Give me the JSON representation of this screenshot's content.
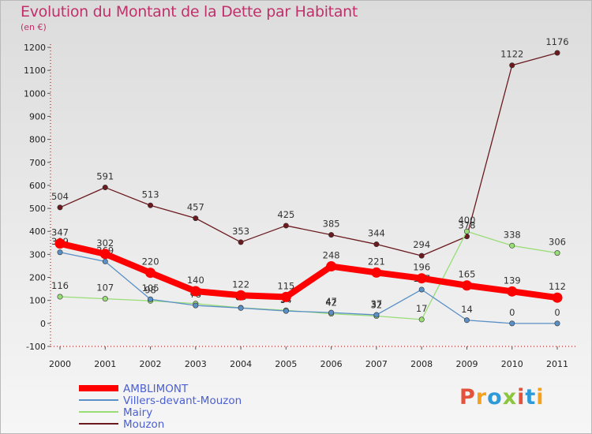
{
  "header": {
    "title": "Evolution du Montant de la Dette par Habitant",
    "unit": "(en €)"
  },
  "logo": {
    "text": "Proxiti",
    "colors": [
      "#e5523b",
      "#f3a21f",
      "#2f9ad8",
      "#8cc63f",
      "#e5523b",
      "#2f9ad8",
      "#f3a21f"
    ]
  },
  "chart_data": {
    "type": "line",
    "title": "Evolution du Montant de la Dette par Habitant",
    "ylabel": "(en €)",
    "xlabel": "",
    "x": [
      "2000",
      "2001",
      "2002",
      "2003",
      "2004",
      "2005",
      "2006",
      "2007",
      "2008",
      "2009",
      "2010",
      "2011"
    ],
    "ylim": [
      -100,
      1200
    ],
    "yticks": [
      -100,
      0,
      100,
      200,
      300,
      400,
      500,
      600,
      700,
      800,
      900,
      1000,
      1100,
      1200
    ],
    "grid": false,
    "legend": "bottom-left",
    "series": [
      {
        "name": "Mouzon",
        "color": "#6b1a1f",
        "values": [
          504,
          591,
          513,
          457,
          353,
          425,
          385,
          344,
          294,
          378,
          1122,
          1176
        ]
      },
      {
        "name": "Mairy",
        "color": "#99dd77",
        "values": [
          116,
          107,
          98,
          86,
          68,
          57,
          42,
          32,
          17,
          400,
          338,
          306
        ]
      },
      {
        "name": "Villers-devant-Mouzon",
        "color": "#5a90c6",
        "values": [
          309,
          269,
          105,
          78,
          67,
          54,
          47,
          37,
          147,
          14,
          0,
          0
        ]
      },
      {
        "name": "AMBLIMONT",
        "color": "#ff0000",
        "values": [
          347,
          302,
          220,
          140,
          122,
          115,
          248,
          221,
          196,
          165,
          139,
          112
        ]
      }
    ],
    "legend_order": [
      "AMBLIMONT",
      "Villers-devant-Mouzon",
      "Mairy",
      "Mouzon"
    ]
  }
}
